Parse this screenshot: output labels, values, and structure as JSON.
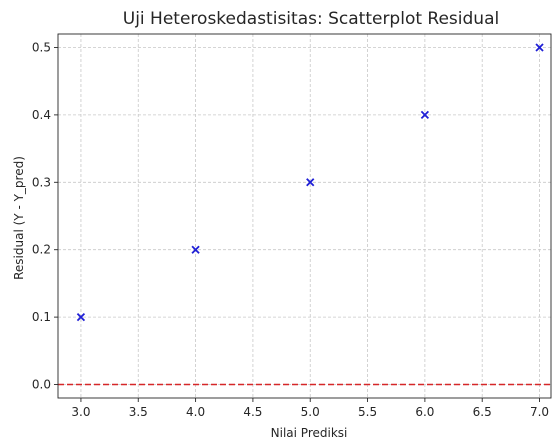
{
  "chart_data": {
    "type": "scatter",
    "title": "Uji Heteroskedastisitas: Scatterplot Residual",
    "xlabel": "Nilai Prediksi",
    "ylabel": "Residual (Y - Y_pred)",
    "xlim": [
      2.8,
      7.1
    ],
    "ylim": [
      -0.02,
      0.52
    ],
    "xticks": [
      3.0,
      3.5,
      4.0,
      4.5,
      5.0,
      5.5,
      6.0,
      6.5,
      7.0
    ],
    "xtick_labels": [
      "3.0",
      "3.5",
      "4.0",
      "4.5",
      "5.0",
      "5.5",
      "6.0",
      "6.5",
      "7.0"
    ],
    "yticks": [
      0.0,
      0.1,
      0.2,
      0.3,
      0.4,
      0.5
    ],
    "ytick_labels": [
      "0.0",
      "0.1",
      "0.2",
      "0.3",
      "0.4",
      "0.5"
    ],
    "grid": true,
    "reference_line": {
      "y": 0.0,
      "color": "#d62728",
      "style": "dashed"
    },
    "series": [
      {
        "marker": "x",
        "color": "#1f1fd6",
        "x": [
          3.0,
          4.0,
          5.0,
          6.0,
          7.0
        ],
        "y": [
          0.1,
          0.2,
          0.3,
          0.4,
          0.5
        ]
      }
    ]
  }
}
